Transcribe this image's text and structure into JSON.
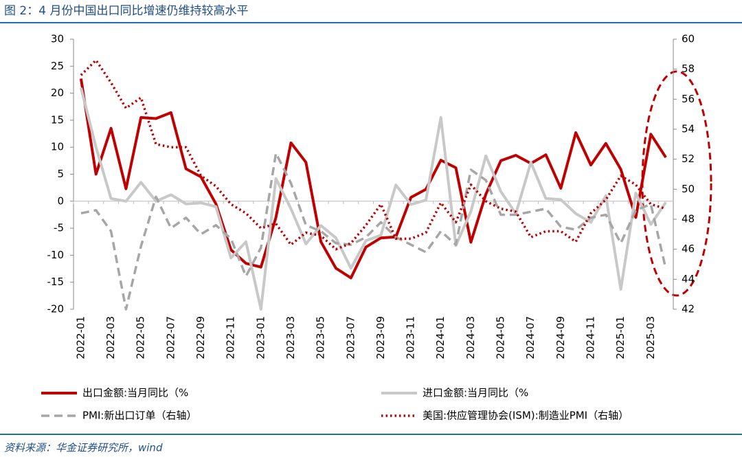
{
  "chart_data": {
    "type": "line",
    "title": "图 2：4 月份中国出口同比增速仍维持较高水平",
    "source": "资料来源：华金证券研究所，wind",
    "categories": [
      "2022-01",
      null,
      "2022-03",
      null,
      "2022-05",
      null,
      "2022-07",
      null,
      "2022-09",
      null,
      "2022-11",
      null,
      "2023-01",
      null,
      "2023-03",
      null,
      "2023-05",
      null,
      "2023-07",
      null,
      "2023-09",
      null,
      "2023-11",
      null,
      "2024-01",
      null,
      "2024-03",
      null,
      "2024-05",
      null,
      "2024-07",
      null,
      "2024-09",
      null,
      "2024-11",
      null,
      "2025-01",
      null,
      "2025-03",
      null
    ],
    "series": [
      {
        "name": "出口金额:当月同比（%",
        "color": "#c00000",
        "style": "solid",
        "values": [
          22.7,
          5.0,
          13.5,
          2.3,
          15.5,
          15.3,
          16.4,
          6.0,
          4.5,
          -0.5,
          -9.0,
          -11.5,
          -12.2,
          -3.0,
          10.8,
          7.2,
          -7.5,
          -12.4,
          -14.2,
          -8.5,
          -6.8,
          -6.6,
          0.7,
          2.2,
          7.6,
          6.2,
          -7.6,
          1.3,
          7.5,
          8.5,
          7.0,
          8.6,
          2.4,
          12.7,
          6.7,
          10.7,
          5.9,
          -3.0,
          12.4,
          8.1
        ]
      },
      {
        "name": "进口金额:当月同比（%",
        "color": "#c8c8c8",
        "style": "solid",
        "values": [
          21.0,
          10.0,
          0.5,
          0.0,
          3.5,
          0.0,
          1.2,
          -0.5,
          -0.3,
          -1.0,
          -10.5,
          -7.5,
          -20.0,
          4.2,
          -1.4,
          -7.9,
          -4.5,
          -6.8,
          -12.4,
          -7.3,
          -6.3,
          3.0,
          -0.6,
          0.2,
          15.5,
          -8.2,
          -1.9,
          8.4,
          1.8,
          -2.3,
          7.2,
          0.5,
          0.3,
          -2.3,
          -3.9,
          1.0,
          -16.3,
          1.5,
          -4.3,
          -0.2
        ]
      },
      {
        "name": "PMI:新出口订单（右轴）",
        "color": "#a6a6a6",
        "style": "dashed",
        "axis": "y2",
        "values": [
          48.4,
          48.6,
          47.2,
          42.0,
          46.2,
          49.5,
          47.4,
          48.1,
          47.0,
          47.6,
          46.7,
          44.2,
          46.1,
          52.4,
          50.4,
          47.6,
          47.2,
          46.4,
          46.3,
          46.8,
          47.8,
          46.8,
          46.3,
          45.8,
          47.2,
          46.3,
          51.3,
          50.6,
          48.3,
          48.3,
          48.5,
          48.7,
          47.5,
          47.3,
          48.1,
          48.3,
          46.4,
          48.6,
          49.0,
          44.7
        ]
      },
      {
        "name": "美国:供应管理协会(ISM):制造业PMI（右轴）",
        "color": "#c00000",
        "style": "dotted",
        "axis": "y2",
        "values": [
          57.6,
          58.6,
          57.1,
          55.4,
          56.1,
          53.0,
          52.8,
          52.8,
          50.9,
          50.2,
          49.0,
          48.4,
          47.4,
          47.7,
          46.3,
          47.1,
          46.9,
          46.0,
          46.4,
          47.6,
          49.0,
          46.7,
          46.7,
          47.1,
          49.1,
          47.8,
          50.3,
          49.2,
          48.7,
          48.5,
          46.8,
          47.2,
          47.2,
          46.5,
          48.4,
          49.3,
          50.9,
          50.3,
          49.0,
          48.7
        ]
      }
    ],
    "ylim": [
      -20,
      30
    ],
    "yticks": [
      -20,
      -15,
      -10,
      -5,
      0,
      5,
      10,
      15,
      20,
      25,
      30
    ],
    "y2lim": [
      42,
      60
    ],
    "y2ticks": [
      42,
      44,
      46,
      48,
      50,
      52,
      54,
      56,
      58,
      60
    ],
    "legend": "bottom"
  }
}
